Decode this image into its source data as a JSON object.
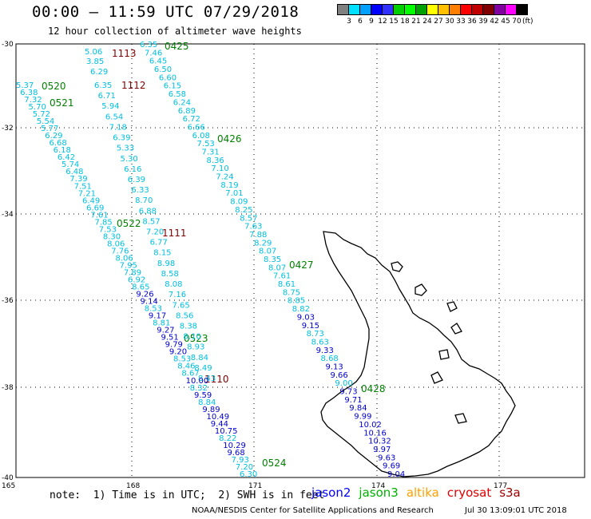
{
  "title": "00:00 – 11:59 UTC 07/29/2018",
  "subtitle": "12 hour collection of altimeter wave heights",
  "scale": {
    "colors": [
      "#808080",
      "#00e0ff",
      "#00a0ff",
      "#0000ff",
      "#3030ff",
      "#00d000",
      "#00ff00",
      "#00a000",
      "#ffff00",
      "#ffc000",
      "#ff8000",
      "#ff0000",
      "#c00000",
      "#800000",
      "#8000a0",
      "#ff00ff",
      "#000000"
    ],
    "labels": [
      "3",
      "6",
      "9",
      "12",
      "15",
      "18",
      "21",
      "24",
      "27",
      "30",
      "33",
      "36",
      "39",
      "42",
      "45",
      "70"
    ],
    "unit": "(ft)"
  },
  "axes": {
    "lat_labels": [
      "-30",
      "-32",
      "-34",
      "-36",
      "-38",
      "-40"
    ],
    "lon_labels": [
      "165",
      "168",
      "171",
      "174",
      "177"
    ]
  },
  "tracks": [
    {
      "id": "1113",
      "color": "#800000"
    },
    {
      "id": "0425",
      "color": "#008000"
    },
    {
      "id": "1112",
      "color": "#800000"
    },
    {
      "id": "0520",
      "color": "#008000"
    },
    {
      "id": "0521",
      "color": "#008000"
    },
    {
      "id": "0426",
      "color": "#008000"
    },
    {
      "id": "0522",
      "color": "#008000"
    },
    {
      "id": "1111",
      "color": "#800000"
    },
    {
      "id": "0427",
      "color": "#008000"
    },
    {
      "id": "0523",
      "color": "#008000"
    },
    {
      "id": "1110",
      "color": "#800000"
    },
    {
      "id": "0428",
      "color": "#008000"
    },
    {
      "id": "0524",
      "color": "#008000"
    }
  ],
  "readings": [
    {
      "v": "5.06",
      "c": "#00c0e0"
    },
    {
      "v": "3.85",
      "c": "#00c0e0"
    },
    {
      "v": "6.29",
      "c": "#00c0e0"
    },
    {
      "v": "6.35",
      "c": "#00c0e0"
    },
    {
      "v": "7.46",
      "c": "#00c0e0"
    },
    {
      "v": "6.45",
      "c": "#00c0e0"
    },
    {
      "v": "6.50",
      "c": "#00c0e0"
    },
    {
      "v": "6.60",
      "c": "#00c0e0"
    },
    {
      "v": "6.15",
      "c": "#00c0e0"
    },
    {
      "v": "6.58",
      "c": "#00c0e0"
    },
    {
      "v": "6.24",
      "c": "#00c0e0"
    },
    {
      "v": "6.89",
      "c": "#00c0e0"
    },
    {
      "v": "6.72",
      "c": "#00c0e0"
    },
    {
      "v": "6.66",
      "c": "#00c0e0"
    },
    {
      "v": "6.08",
      "c": "#00c0e0"
    },
    {
      "v": "7.53",
      "c": "#00c0e0"
    },
    {
      "v": "7.31",
      "c": "#00c0e0"
    },
    {
      "v": "8.36",
      "c": "#00c0e0"
    },
    {
      "v": "7.10",
      "c": "#00c0e0"
    },
    {
      "v": "7.24",
      "c": "#00c0e0"
    },
    {
      "v": "8.19",
      "c": "#00c0e0"
    },
    {
      "v": "7.01",
      "c": "#00c0e0"
    },
    {
      "v": "8.09",
      "c": "#00c0e0"
    },
    {
      "v": "8.25",
      "c": "#00c0e0"
    },
    {
      "v": "8.57",
      "c": "#00c0e0"
    },
    {
      "v": "7.63",
      "c": "#00c0e0"
    },
    {
      "v": "7.88",
      "c": "#00c0e0"
    },
    {
      "v": "8.29",
      "c": "#00c0e0"
    },
    {
      "v": "8.07",
      "c": "#00c0e0"
    },
    {
      "v": "8.35",
      "c": "#00c0e0"
    },
    {
      "v": "8.07",
      "c": "#00c0e0"
    },
    {
      "v": "7.61",
      "c": "#00c0e0"
    },
    {
      "v": "8.61",
      "c": "#00c0e0"
    },
    {
      "v": "8.75",
      "c": "#00c0e0"
    },
    {
      "v": "8.85",
      "c": "#00c0e0"
    },
    {
      "v": "8.82",
      "c": "#00c0e0"
    },
    {
      "v": "9.03",
      "c": "#0000d0"
    },
    {
      "v": "9.15",
      "c": "#0000d0"
    },
    {
      "v": "8.73",
      "c": "#00c0e0"
    },
    {
      "v": "8.63",
      "c": "#00c0e0"
    },
    {
      "v": "9.33",
      "c": "#0000d0"
    },
    {
      "v": "8.68",
      "c": "#00c0e0"
    },
    {
      "v": "9.13",
      "c": "#0000d0"
    },
    {
      "v": "9.66",
      "c": "#0000d0"
    },
    {
      "v": "9.00",
      "c": "#00c0e0"
    },
    {
      "v": "9.73",
      "c": "#0000d0"
    },
    {
      "v": "9.71",
      "c": "#0000d0"
    },
    {
      "v": "9.84",
      "c": "#0000d0"
    },
    {
      "v": "9.99",
      "c": "#0000d0"
    },
    {
      "v": "10.02",
      "c": "#0000d0"
    },
    {
      "v": "10.16",
      "c": "#0000d0"
    },
    {
      "v": "10.32",
      "c": "#0000d0"
    },
    {
      "v": "9.97",
      "c": "#0000d0"
    },
    {
      "v": "9.63",
      "c": "#0000d0"
    },
    {
      "v": "9.69",
      "c": "#0000d0"
    },
    {
      "v": "9.04",
      "c": "#0000d0"
    },
    {
      "v": "6.35",
      "c": "#00c0e0"
    },
    {
      "v": "6.71",
      "c": "#00c0e0"
    },
    {
      "v": "5.94",
      "c": "#00c0e0"
    },
    {
      "v": "6.54",
      "c": "#00c0e0"
    },
    {
      "v": "7.18",
      "c": "#00c0e0"
    },
    {
      "v": "6.39",
      "c": "#00c0e0"
    },
    {
      "v": "5.33",
      "c": "#00c0e0"
    },
    {
      "v": "5.30",
      "c": "#00c0e0"
    },
    {
      "v": "6.16",
      "c": "#00c0e0"
    },
    {
      "v": "6.39",
      "c": "#00c0e0"
    },
    {
      "v": "6.33",
      "c": "#00c0e0"
    },
    {
      "v": "8.70",
      "c": "#00c0e0"
    },
    {
      "v": "6.88",
      "c": "#00c0e0"
    },
    {
      "v": "8.57",
      "c": "#00c0e0"
    },
    {
      "v": "7.20",
      "c": "#00c0e0"
    },
    {
      "v": "6.77",
      "c": "#00c0e0"
    },
    {
      "v": "8.15",
      "c": "#00c0e0"
    },
    {
      "v": "8.98",
      "c": "#00c0e0"
    },
    {
      "v": "8.58",
      "c": "#00c0e0"
    },
    {
      "v": "8.08",
      "c": "#00c0e0"
    },
    {
      "v": "7.16",
      "c": "#00c0e0"
    },
    {
      "v": "7.65",
      "c": "#00c0e0"
    },
    {
      "v": "8.56",
      "c": "#00c0e0"
    },
    {
      "v": "8.38",
      "c": "#00c0e0"
    },
    {
      "v": "8.10",
      "c": "#00c0e0"
    },
    {
      "v": "8.93",
      "c": "#00c0e0"
    },
    {
      "v": "8.84",
      "c": "#00c0e0"
    },
    {
      "v": "8.49",
      "c": "#00c0e0"
    },
    {
      "v": "8.43",
      "c": "#00c0e0"
    },
    {
      "v": "5.37",
      "c": "#00c0e0"
    },
    {
      "v": "6.38",
      "c": "#00c0e0"
    },
    {
      "v": "7.32",
      "c": "#00c0e0"
    },
    {
      "v": "5.70",
      "c": "#00c0e0"
    },
    {
      "v": "5.72",
      "c": "#00c0e0"
    },
    {
      "v": "5.54",
      "c": "#00c0e0"
    },
    {
      "v": "5.77",
      "c": "#00c0e0"
    },
    {
      "v": "6.29",
      "c": "#00c0e0"
    },
    {
      "v": "6.68",
      "c": "#00c0e0"
    },
    {
      "v": "6.18",
      "c": "#00c0e0"
    },
    {
      "v": "6.42",
      "c": "#00c0e0"
    },
    {
      "v": "5.74",
      "c": "#00c0e0"
    },
    {
      "v": "6.48",
      "c": "#00c0e0"
    },
    {
      "v": "7.39",
      "c": "#00c0e0"
    },
    {
      "v": "7.51",
      "c": "#00c0e0"
    },
    {
      "v": "7.21",
      "c": "#00c0e0"
    },
    {
      "v": "6.49",
      "c": "#00c0e0"
    },
    {
      "v": "6.69",
      "c": "#00c0e0"
    },
    {
      "v": "7.61",
      "c": "#00c0e0"
    },
    {
      "v": "7.85",
      "c": "#00c0e0"
    },
    {
      "v": "7.53",
      "c": "#00c0e0"
    },
    {
      "v": "8.30",
      "c": "#00c0e0"
    },
    {
      "v": "8.06",
      "c": "#00c0e0"
    },
    {
      "v": "7.76",
      "c": "#00c0e0"
    },
    {
      "v": "8.06",
      "c": "#00c0e0"
    },
    {
      "v": "7.95",
      "c": "#00c0e0"
    },
    {
      "v": "7.89",
      "c": "#00c0e0"
    },
    {
      "v": "6.92",
      "c": "#00c0e0"
    },
    {
      "v": "8.65",
      "c": "#00c0e0"
    },
    {
      "v": "9.26",
      "c": "#0000d0"
    },
    {
      "v": "9.14",
      "c": "#0000d0"
    },
    {
      "v": "8.53",
      "c": "#00c0e0"
    },
    {
      "v": "9.17",
      "c": "#0000d0"
    },
    {
      "v": "8.81",
      "c": "#00c0e0"
    },
    {
      "v": "9.27",
      "c": "#0000d0"
    },
    {
      "v": "9.51",
      "c": "#0000d0"
    },
    {
      "v": "9.79",
      "c": "#0000d0"
    },
    {
      "v": "9.20",
      "c": "#0000d0"
    },
    {
      "v": "8.53",
      "c": "#00c0e0"
    },
    {
      "v": "8.46",
      "c": "#00c0e0"
    },
    {
      "v": "8.67",
      "c": "#00c0e0"
    },
    {
      "v": "10.00",
      "c": "#0000d0"
    },
    {
      "v": "8.32",
      "c": "#00c0e0"
    },
    {
      "v": "9.59",
      "c": "#0000d0"
    },
    {
      "v": "8.84",
      "c": "#00c0e0"
    },
    {
      "v": "9.89",
      "c": "#0000d0"
    },
    {
      "v": "10.49",
      "c": "#0000d0"
    },
    {
      "v": "9.44",
      "c": "#0000d0"
    },
    {
      "v": "10.75",
      "c": "#0000d0"
    },
    {
      "v": "8.22",
      "c": "#00c0e0"
    },
    {
      "v": "10.29",
      "c": "#0000d0"
    },
    {
      "v": "9.68",
      "c": "#0000d0"
    },
    {
      "v": "7.93",
      "c": "#00c0e0"
    },
    {
      "v": "7.20",
      "c": "#00c0e0"
    },
    {
      "v": "6.30",
      "c": "#00c0e0"
    }
  ],
  "footer": {
    "note": "note:  1) Time is in UTC;  2) SWH is in feet",
    "legend": [
      {
        "label": "jason2",
        "color": "#0000ff"
      },
      {
        "label": "jason3",
        "color": "#00b000"
      },
      {
        "label": "altika",
        "color": "#ffa000"
      },
      {
        "label": "cryosat",
        "color": "#e00000"
      },
      {
        "label": "s3a",
        "color": "#a00000"
      }
    ],
    "credit": "NOAA/NESDIS Center for Satellite Applications and Research",
    "date": "Jul 30 13:09:01 UTC 2018"
  }
}
